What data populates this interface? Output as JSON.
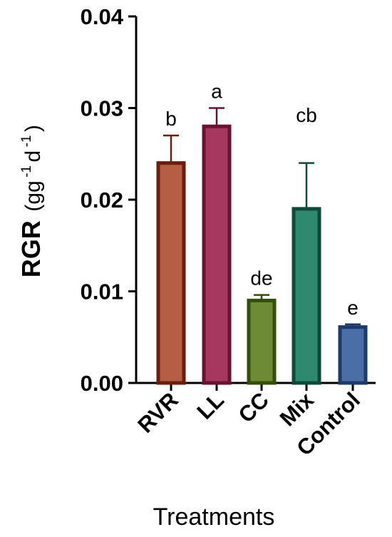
{
  "chart_data": {
    "type": "bar",
    "categories": [
      "RVR",
      "LL",
      "CC",
      "Mix",
      "Control"
    ],
    "values": [
      0.024,
      0.028,
      0.009,
      0.019,
      0.0061
    ],
    "errors": [
      0.003,
      0.002,
      0.0006,
      0.005,
      0.0003
    ],
    "significance": [
      "b",
      "a",
      "de",
      "cb",
      "e"
    ],
    "fill_colors": [
      "#b55d45",
      "#a6385f",
      "#6d8a34",
      "#2e8a6e",
      "#4a6ea6"
    ],
    "edge_colors": [
      "#6e1d0c",
      "#6a1232",
      "#334d0a",
      "#0e4a3a",
      "#1e3a6a"
    ],
    "ylim": [
      0,
      0.04
    ],
    "yticks": [
      "0.00",
      "0.01",
      "0.02",
      "0.03",
      "0.04"
    ],
    "ytick_values": [
      0,
      0.01,
      0.02,
      0.03,
      0.04
    ],
    "ylabel_main": "RGR",
    "ylabel_unit": {
      "open": "(gg",
      "sup1": "-1",
      "mid": "d",
      "sup2": "-1",
      "close": ")"
    },
    "xlabel": "Treatments",
    "grid": false,
    "legend": "none"
  }
}
